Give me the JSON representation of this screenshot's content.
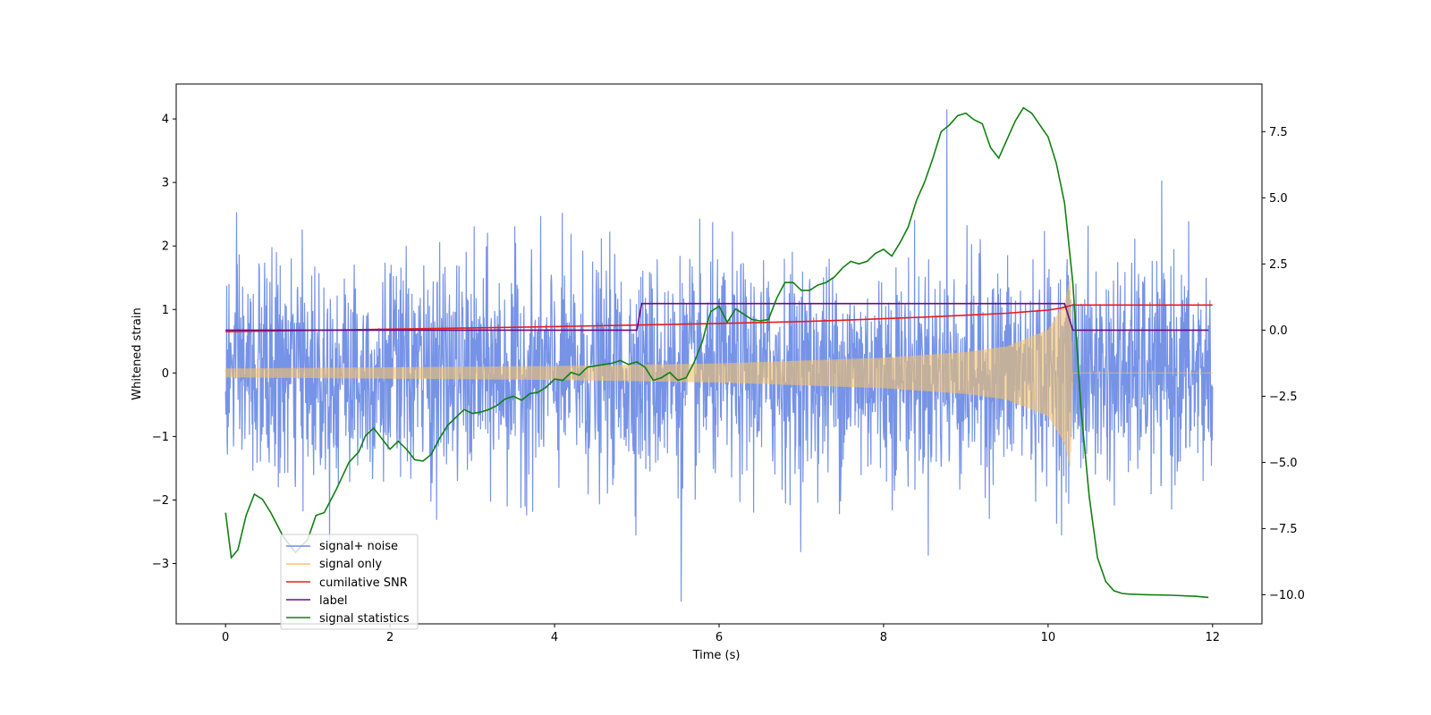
{
  "chart_data": {
    "type": "line",
    "xlabel": "Time (s)",
    "ylabel": "Whitened strain",
    "xlim": [
      -0.6,
      12.6
    ],
    "ylim": [
      -3.95,
      4.55
    ],
    "y2lim": [
      -11.1,
      9.3
    ],
    "x_ticks": [
      0,
      2,
      4,
      6,
      8,
      10,
      12
    ],
    "y_ticks": [
      -3,
      -2,
      -1,
      0,
      1,
      2,
      3,
      4
    ],
    "y2_ticks": [
      -10.0,
      -7.5,
      -5.0,
      -2.5,
      0.0,
      2.5,
      5.0,
      7.5
    ],
    "x_tick_labels": [
      "0",
      "2",
      "4",
      "6",
      "8",
      "10",
      "12"
    ],
    "y_tick_labels": [
      "−3",
      "−2",
      "−1",
      "0",
      "1",
      "2",
      "3",
      "4"
    ],
    "y2_tick_labels": [
      "−10.0",
      "−7.5",
      "−5.0",
      "−2.5",
      "0.0",
      "2.5",
      "5.0",
      "7.5"
    ],
    "grid": false,
    "legend_position": "lower-left",
    "series": [
      {
        "name": "signal+ noise",
        "axis": "left",
        "color": "#6f8de6",
        "kind": "noise",
        "x_range": [
          0,
          12
        ],
        "noise_std": 0.85,
        "peak_max": 4.15,
        "peak_min": -3.6
      },
      {
        "name": "signal only",
        "axis": "left",
        "color": "#f5c26b",
        "kind": "chirp",
        "x_range": [
          0,
          12
        ],
        "merger_time": 10.27,
        "envelope": [
          [
            0,
            0.07
          ],
          [
            2,
            0.09
          ],
          [
            4,
            0.11
          ],
          [
            6,
            0.15
          ],
          [
            8,
            0.24
          ],
          [
            9,
            0.33
          ],
          [
            9.5,
            0.42
          ],
          [
            10,
            0.68
          ],
          [
            10.2,
            1.1
          ],
          [
            10.27,
            1.5
          ],
          [
            10.3,
            0.0
          ],
          [
            12,
            0.0
          ]
        ]
      },
      {
        "name": "cumilative SNR",
        "axis": "left",
        "color": "#e81c1c",
        "x": [
          0,
          1,
          2,
          3,
          4,
          5,
          6,
          7,
          7.5,
          8,
          8.5,
          9,
          9.5,
          9.75,
          10,
          10.15,
          10.27,
          10.3,
          12
        ],
        "values": [
          0.65,
          0.67,
          0.69,
          0.71,
          0.73,
          0.755,
          0.78,
          0.81,
          0.83,
          0.855,
          0.88,
          0.91,
          0.94,
          0.965,
          0.99,
          1.02,
          1.06,
          1.07,
          1.07
        ]
      },
      {
        "name": "label",
        "axis": "right",
        "color": "#6a0d83",
        "x": [
          0,
          5.0,
          5.06,
          10.2,
          10.3,
          11.95
        ],
        "values": [
          0,
          0,
          1,
          1,
          0,
          0
        ]
      },
      {
        "name": "signal statistics",
        "axis": "right",
        "color": "#118011",
        "x": [
          0,
          0.07,
          0.15,
          0.25,
          0.35,
          0.45,
          0.55,
          0.7,
          0.85,
          1.0,
          1.1,
          1.2,
          1.35,
          1.5,
          1.62,
          1.7,
          1.8,
          1.9,
          2.0,
          2.1,
          2.2,
          2.3,
          2.4,
          2.5,
          2.6,
          2.7,
          2.8,
          2.9,
          3.0,
          3.1,
          3.2,
          3.3,
          3.4,
          3.5,
          3.6,
          3.7,
          3.8,
          3.9,
          4.0,
          4.1,
          4.2,
          4.3,
          4.4,
          4.5,
          4.6,
          4.7,
          4.8,
          4.9,
          5.0,
          5.1,
          5.2,
          5.3,
          5.4,
          5.5,
          5.6,
          5.7,
          5.8,
          5.85,
          5.9,
          6.0,
          6.1,
          6.2,
          6.3,
          6.4,
          6.5,
          6.6,
          6.7,
          6.8,
          6.9,
          7.0,
          7.1,
          7.2,
          7.3,
          7.4,
          7.5,
          7.6,
          7.7,
          7.8,
          7.9,
          8.0,
          8.1,
          8.2,
          8.3,
          8.4,
          8.5,
          8.6,
          8.7,
          8.8,
          8.9,
          9.0,
          9.1,
          9.2,
          9.3,
          9.4,
          9.5,
          9.6,
          9.7,
          9.8,
          9.9,
          10.0,
          10.1,
          10.2,
          10.3,
          10.4,
          10.5,
          10.6,
          10.7,
          10.8,
          10.9,
          11.0,
          11.2,
          11.5,
          11.8,
          11.95
        ],
        "values": [
          -6.9,
          -8.6,
          -8.3,
          -7.0,
          -6.2,
          -6.4,
          -6.9,
          -7.8,
          -8.4,
          -7.9,
          -7.0,
          -6.9,
          -6.0,
          -5.0,
          -4.6,
          -4.0,
          -3.7,
          -4.1,
          -4.5,
          -4.2,
          -4.5,
          -4.9,
          -4.95,
          -4.7,
          -4.1,
          -3.6,
          -3.3,
          -3.0,
          -3.15,
          -3.1,
          -3.0,
          -2.85,
          -2.6,
          -2.5,
          -2.65,
          -2.4,
          -2.35,
          -2.15,
          -1.85,
          -1.9,
          -1.6,
          -1.7,
          -1.4,
          -1.35,
          -1.3,
          -1.25,
          -1.15,
          -1.3,
          -1.2,
          -1.4,
          -1.9,
          -1.8,
          -1.6,
          -1.9,
          -1.8,
          -1.2,
          -0.4,
          0.2,
          0.7,
          0.9,
          0.3,
          0.8,
          0.6,
          0.4,
          0.35,
          0.4,
          1.2,
          1.8,
          1.8,
          1.5,
          1.5,
          1.7,
          1.8,
          2.0,
          2.35,
          2.6,
          2.5,
          2.6,
          2.9,
          3.05,
          2.8,
          3.3,
          3.9,
          4.9,
          5.6,
          6.5,
          7.5,
          7.75,
          8.1,
          8.2,
          7.95,
          7.8,
          6.9,
          6.5,
          7.2,
          7.9,
          8.4,
          8.2,
          7.75,
          7.3,
          6.3,
          4.8,
          1.8,
          -3.0,
          -6.3,
          -8.6,
          -9.5,
          -9.85,
          -9.95,
          -9.98,
          -10.0,
          -10.02,
          -10.06,
          -10.1
        ]
      }
    ]
  }
}
